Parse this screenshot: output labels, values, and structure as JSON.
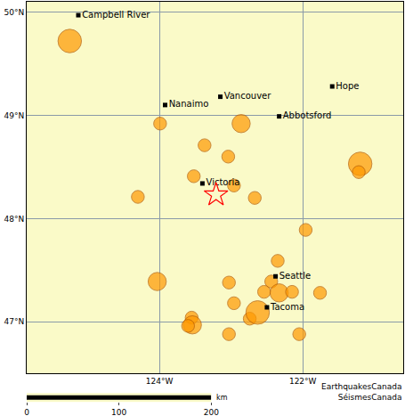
{
  "chart_data": {
    "type": "scatter",
    "xlim": [
      -125.85,
      -120.6
    ],
    "ylim": [
      46.5,
      50.1
    ],
    "xticks": [
      {
        "value": -124,
        "label": "124°W"
      },
      {
        "value": -122,
        "label": "122°W"
      }
    ],
    "yticks": [
      {
        "value": 47,
        "label": "47°N"
      },
      {
        "value": 48,
        "label": "48°N"
      },
      {
        "value": 49,
        "label": "49°N"
      },
      {
        "value": 50,
        "label": "50°N"
      }
    ],
    "grid": true,
    "series": [
      {
        "type": "bubble",
        "color": "#ff9900",
        "marker": "circle",
        "x": [
          -125.25,
          -123.99,
          -122.86,
          -123.37,
          -123.04,
          -123.52,
          -122.96,
          -124.3,
          -122.67,
          -121.2,
          -121.22,
          -121.96,
          -122.35,
          -124.03,
          -123.03,
          -122.44,
          -121.76,
          -122.54,
          -122.33,
          -122.15,
          -122.96,
          -122.74,
          -122.63,
          -123.55,
          -123.54,
          -123.6,
          -123.03,
          -122.05
        ],
        "y": [
          49.72,
          48.92,
          48.92,
          48.71,
          48.6,
          48.41,
          48.32,
          48.21,
          48.2,
          48.53,
          48.45,
          47.89,
          47.59,
          47.39,
          47.38,
          47.39,
          47.28,
          47.29,
          47.28,
          47.29,
          47.18,
          47.03,
          47.09,
          47.04,
          46.97,
          46.96,
          46.88,
          46.88
        ],
        "size": [
          3.5,
          2.5,
          3.0,
          2.5,
          2.5,
          2.5,
          2.5,
          2.5,
          2.5,
          3.5,
          2.5,
          2.5,
          2.5,
          3.0,
          2.5,
          2.5,
          2.5,
          2.5,
          3.0,
          2.5,
          2.5,
          2.5,
          3.5,
          2.5,
          3.0,
          2.5,
          2.5,
          2.5
        ]
      },
      {
        "type": "scatter",
        "color": "#000000",
        "marker": "square",
        "x": [
          -125.13,
          -123.92,
          -123.15,
          -121.59,
          -122.33,
          -123.4,
          -122.38,
          -122.5
        ],
        "y": [
          49.97,
          49.1,
          49.18,
          49.28,
          48.99,
          48.34,
          47.44,
          47.14
        ],
        "labels": [
          "Campbell River",
          "Nanaimo",
          "Vancouver",
          "Hope",
          "Abbotsford",
          "Victoria",
          "Seattle",
          "Tacoma"
        ]
      },
      {
        "type": "scatter",
        "color": "#ff0000",
        "marker": "star-open",
        "x": [
          -123.21
        ],
        "y": [
          48.23
        ]
      }
    ],
    "scale_bar": {
      "xlim": [
        0,
        200
      ],
      "xticks": [
        0,
        100,
        200
      ],
      "unit": "km"
    },
    "credit": [
      "EarthquakesCanada",
      "SéismesCanada"
    ]
  }
}
